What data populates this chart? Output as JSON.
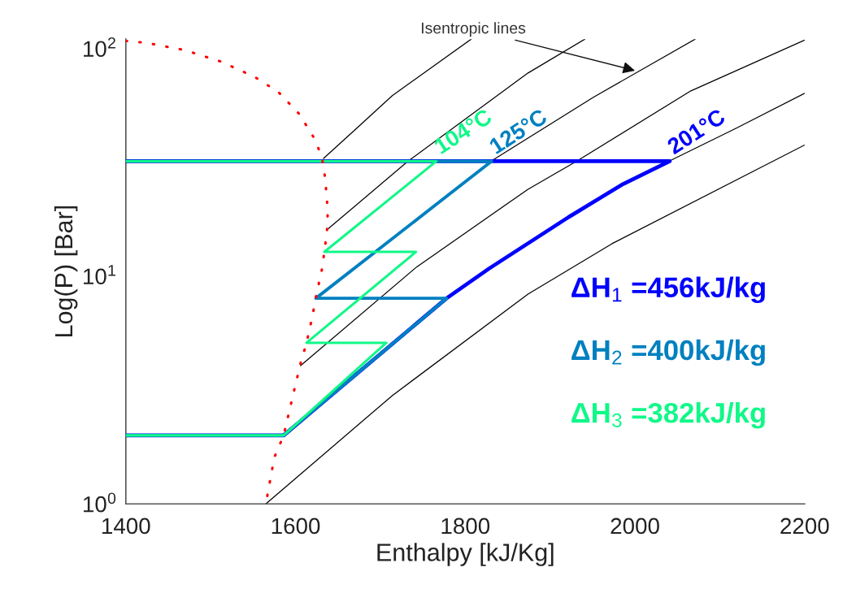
{
  "chart_data": {
    "type": "line",
    "xlabel": "Enthalpy [kJ/Kg]",
    "ylabel": "Log(P) [Bar]",
    "log": "y",
    "xlim": [
      1400,
      2200
    ],
    "xticks": [
      1400,
      1600,
      1800,
      2000,
      2200
    ],
    "ylim": [
      1,
      110
    ],
    "yticks": [
      {
        "value": 1,
        "label": "10$^{0}$"
      },
      {
        "value": 10,
        "label": "10$^{1}$"
      },
      {
        "value": 100,
        "label": "10$^{2}$"
      }
    ],
    "grid": false,
    "legend": false,
    "annotations": [
      {
        "text": "Isentropic lines",
        "x": 2000,
        "y": 80
      },
      "ΔH$_{1}$ =456kJ/kg",
      "ΔH$_{2}$ =400kJ/kg",
      "ΔH$_{3}$ =382kJ/kg"
    ],
    "series": [
      {
        "name": "201°C",
        "color": "#0000ff",
        "x": [
          1400,
          1586,
          1778,
          1828,
          1922,
          1986,
          2041,
          1400
        ],
        "values": [
          2,
          2,
          8,
          10.8,
          18.2,
          25.4,
          32,
          32
        ]
      },
      {
        "name": "125°C",
        "color": "#0080c0",
        "x": [
          1400,
          1586,
          1778,
          1624,
          1831,
          1400
        ],
        "values": [
          2,
          2,
          8,
          8,
          32,
          32
        ]
      },
      {
        "name": "104°C",
        "color": "#10f888",
        "x": [
          1400,
          1586,
          1707,
          1613,
          1742,
          1634,
          1766,
          1400
        ],
        "values": [
          2,
          2,
          5.1,
          5.1,
          12.8,
          12.8,
          32,
          32
        ]
      },
      {
        "color": "#ff0000",
        "line_style": "dotted",
        "x": [
          1400,
          1424,
          1469,
          1512,
          1552,
          1580,
          1604,
          1622,
          1631,
          1635,
          1638,
          1637,
          1634,
          1631,
          1624,
          1620,
          1613,
          1606,
          1598,
          1586,
          1575,
          1565
        ],
        "values": [
          108,
          106,
          98.5,
          87.7,
          75,
          64.3,
          51.8,
          40.4,
          33.5,
          26.8,
          19.3,
          15.7,
          12.8,
          10.7,
          8.08,
          6.7,
          5.1,
          4.15,
          3.11,
          2.0,
          1.6,
          1.0
        ]
      },
      {
        "color": "#000000",
        "x": [
          1633,
          1673,
          1714,
          1807
        ],
        "values": [
          32.9,
          45.0,
          62.1,
          110
        ]
      },
      {
        "color": "#000000",
        "x": [
          1638,
          1733,
          1874,
          1941
        ],
        "values": [
          16.1,
          32.1,
          78.1,
          110
        ]
      },
      {
        "color": "#000000",
        "x": [
          1624,
          1831,
          1951,
          2071
        ],
        "values": [
          8.08,
          32.1,
          61.1,
          110
        ]
      },
      {
        "color": "#000000",
        "x": [
          1606,
          1743,
          1874,
          1932,
          2066,
          2200
        ],
        "values": [
          4.05,
          11.0,
          24.1,
          32.1,
          65.2,
          109
        ]
      },
      {
        "color": "#000000",
        "x": [
          2041,
          2119,
          2200
        ],
        "values": [
          32.1,
          44.6,
          63.6
        ]
      },
      {
        "color": "#000000",
        "x": [
          1565,
          1714,
          1874,
          1973,
          2200
        ],
        "values": [
          1.0,
          2.99,
          8.35,
          13.9,
          37.7
        ]
      }
    ]
  }
}
